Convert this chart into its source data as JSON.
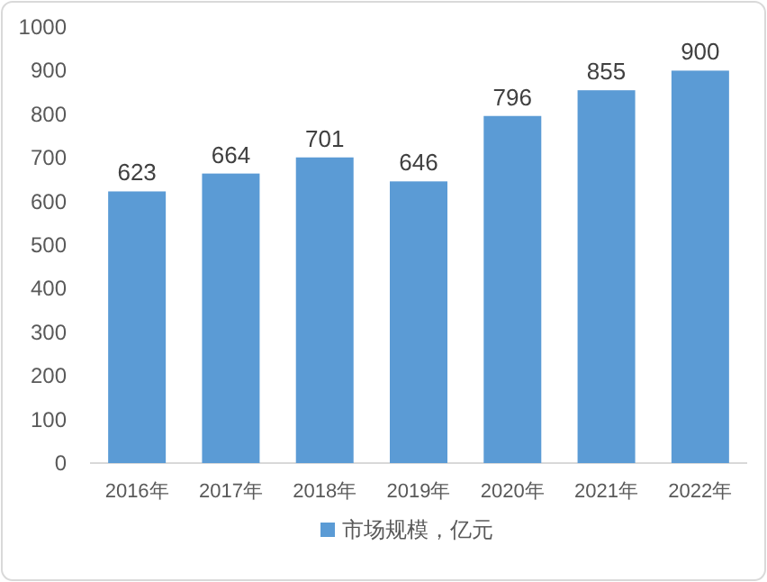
{
  "chart_data": {
    "type": "bar",
    "categories": [
      "2016年",
      "2017年",
      "2018年",
      "2019年",
      "2020年",
      "2021年",
      "2022年"
    ],
    "series": [
      {
        "name": "市场规模，亿元",
        "color": "#5b9bd5",
        "values": [
          623,
          664,
          701,
          646,
          796,
          855,
          900
        ]
      }
    ],
    "ylim": [
      0,
      1000
    ],
    "yticks": [
      0,
      100,
      200,
      300,
      400,
      500,
      600,
      700,
      800,
      900,
      1000
    ],
    "data_labels": true,
    "legend": "bottom",
    "grid": false
  }
}
